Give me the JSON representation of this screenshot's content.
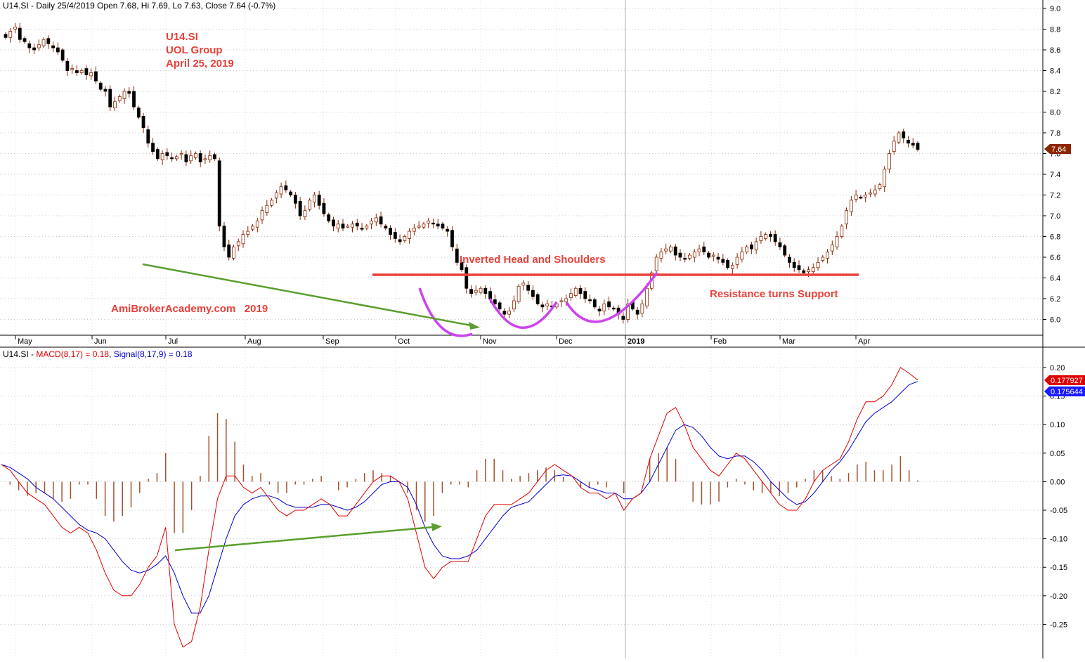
{
  "price_panel": {
    "header": "U14.SI - Daily 25/4/2019 Open 7.68, Hi 7.69, Lo 7.63, Close 7.64 (-0.7%)",
    "annotations": {
      "ticker": "U14.SI",
      "company": "UOL Group",
      "date": "April 25, 2019",
      "watermark": "AmiBrokerAcademy.com   2019",
      "pattern": "Inverted Head and Shoulders",
      "resistance": "Resistance turns Support"
    },
    "last_price_label": "7.64"
  },
  "macd_panel": {
    "header_prefix": "U14.SI - ",
    "macd_label": "MACD(8,17) = 0.18",
    "signal_label": "Signal(8,17,9) = 0.18",
    "macd_value_label": "0.177927",
    "signal_value_label": "0.175644"
  },
  "colors": {
    "up_candle": "#ffffff",
    "down_candle": "#000000",
    "wick": "#8b2500",
    "macd_line": "#e00000",
    "signal_line": "#0000cc",
    "histogram": "#a0522d",
    "annotation_text": "#e8413a",
    "resistance_line": "#e8413a",
    "trend_arrows": "#5a9e2f",
    "pattern_arcs": "#cc44ee",
    "last_price_badge": "#8b2500"
  },
  "chart_data": [
    {
      "type": "candlestick",
      "x_ticks": [
        "May",
        "Jun",
        "Jul",
        "Aug",
        "Sep",
        "Oct",
        "Nov",
        "Dec",
        "2019",
        "Feb",
        "Mar",
        "Apr"
      ],
      "y_ticks": [
        "9.0",
        "8.8",
        "8.6",
        "8.4",
        "8.2",
        "8.0",
        "7.8",
        "7.6",
        "7.4",
        "7.2",
        "7.0",
        "6.8",
        "6.6",
        "6.4",
        "6.2",
        "6.0"
      ],
      "ylim": [
        5.85,
        9.05
      ],
      "resistance_level": 6.42,
      "trend_line": [
        [
          5.2,
          6.55
        ],
        [
          6.0,
          5.92
        ]
      ],
      "close": [
        8.72,
        8.78,
        8.82,
        8.7,
        8.68,
        8.62,
        8.6,
        8.65,
        8.7,
        8.66,
        8.62,
        8.58,
        8.5,
        8.4,
        8.42,
        8.38,
        8.4,
        8.36,
        8.38,
        8.3,
        8.22,
        8.2,
        8.05,
        8.1,
        8.15,
        8.2,
        8.18,
        8.05,
        7.95,
        7.85,
        7.7,
        7.62,
        7.55,
        7.6,
        7.58,
        7.55,
        7.57,
        7.6,
        7.52,
        7.58,
        7.6,
        7.52,
        7.55,
        7.58,
        7.55,
        6.9,
        6.7,
        6.6,
        6.7,
        6.75,
        6.82,
        6.85,
        6.9,
        6.95,
        7.05,
        7.1,
        7.15,
        7.22,
        7.28,
        7.25,
        7.2,
        7.12,
        7.0,
        7.05,
        7.15,
        7.2,
        7.1,
        7.02,
        6.95,
        6.9,
        6.92,
        6.88,
        6.9,
        6.92,
        6.9,
        6.88,
        6.9,
        6.95,
        6.98,
        6.92,
        6.88,
        6.82,
        6.78,
        6.75,
        6.8,
        6.85,
        6.88,
        6.9,
        6.92,
        6.95,
        6.92,
        6.9,
        6.88,
        6.85,
        6.7,
        6.55,
        6.48,
        6.3,
        6.25,
        6.28,
        6.3,
        6.25,
        6.2,
        6.15,
        6.1,
        6.05,
        6.08,
        6.18,
        6.32,
        6.35,
        6.28,
        6.22,
        6.15,
        6.12,
        6.15,
        6.12,
        6.15,
        6.18,
        6.2,
        6.25,
        6.3,
        6.25,
        6.2,
        6.18,
        6.12,
        6.08,
        6.15,
        6.12,
        6.1,
        6.05,
        6.0,
        6.15,
        6.1,
        6.05,
        6.15,
        6.3,
        6.45,
        6.6,
        6.65,
        6.68,
        6.7,
        6.62,
        6.6,
        6.58,
        6.62,
        6.65,
        6.68,
        6.65,
        6.6,
        6.62,
        6.58,
        6.55,
        6.5,
        6.52,
        6.6,
        6.65,
        6.7,
        6.68,
        6.75,
        6.8,
        6.82,
        6.8,
        6.75,
        6.7,
        6.62,
        6.55,
        6.5,
        6.48,
        6.45,
        6.48,
        6.5,
        6.55,
        6.6,
        6.65,
        6.72,
        6.8,
        6.9,
        7.05,
        7.15,
        7.2,
        7.18,
        7.2,
        7.22,
        7.25,
        7.3,
        7.45,
        7.6,
        7.72,
        7.8,
        7.75,
        7.7,
        7.68,
        7.64
      ]
    },
    {
      "type": "line+histogram",
      "y_ticks": [
        "0.20",
        "0.15",
        "0.10",
        "0.05",
        "0.00",
        "-0.05",
        "-0.10",
        "-0.15",
        "-0.20",
        "-0.25"
      ],
      "ylim": [
        -0.3,
        0.22
      ],
      "series": [
        {
          "name": "MACD(8,17)",
          "values": [
            0.03,
            0.02,
            0.0,
            -0.02,
            -0.03,
            -0.04,
            -0.06,
            -0.08,
            -0.09,
            -0.08,
            -0.09,
            -0.12,
            -0.16,
            -0.19,
            -0.2,
            -0.2,
            -0.18,
            -0.15,
            -0.13,
            -0.08,
            -0.25,
            -0.29,
            -0.28,
            -0.22,
            -0.12,
            -0.03,
            0.01,
            0.01,
            -0.01,
            -0.02,
            -0.01,
            -0.03,
            -0.05,
            -0.06,
            -0.05,
            -0.05,
            -0.04,
            -0.03,
            -0.04,
            -0.06,
            -0.06,
            -0.04,
            -0.02,
            0.0,
            0.01,
            0.01,
            0.0,
            -0.03,
            -0.09,
            -0.15,
            -0.17,
            -0.15,
            -0.14,
            -0.14,
            -0.14,
            -0.1,
            -0.06,
            -0.04,
            -0.04,
            -0.04,
            -0.03,
            -0.02,
            0.0,
            0.02,
            0.03,
            0.02,
            0.01,
            -0.01,
            -0.02,
            -0.02,
            -0.03,
            -0.02,
            -0.05,
            -0.03,
            -0.02,
            0.04,
            0.08,
            0.12,
            0.13,
            0.1,
            0.06,
            0.04,
            0.02,
            0.01,
            0.03,
            0.05,
            0.04,
            0.02,
            0.0,
            -0.02,
            -0.04,
            -0.05,
            -0.05,
            -0.03,
            0.0,
            0.02,
            0.03,
            0.04,
            0.07,
            0.11,
            0.14,
            0.14,
            0.15,
            0.17,
            0.2,
            0.19,
            0.178
          ]
        },
        {
          "name": "Signal(8,17,9)",
          "values": [
            0.03,
            0.025,
            0.015,
            0.005,
            -0.01,
            -0.02,
            -0.03,
            -0.045,
            -0.06,
            -0.075,
            -0.085,
            -0.09,
            -0.1,
            -0.12,
            -0.14,
            -0.155,
            -0.16,
            -0.155,
            -0.145,
            -0.13,
            -0.16,
            -0.2,
            -0.23,
            -0.23,
            -0.2,
            -0.15,
            -0.1,
            -0.06,
            -0.04,
            -0.03,
            -0.025,
            -0.025,
            -0.03,
            -0.04,
            -0.045,
            -0.045,
            -0.045,
            -0.04,
            -0.04,
            -0.045,
            -0.05,
            -0.045,
            -0.035,
            -0.02,
            -0.005,
            0.0,
            0.0,
            -0.01,
            -0.04,
            -0.08,
            -0.11,
            -0.13,
            -0.135,
            -0.135,
            -0.13,
            -0.12,
            -0.1,
            -0.08,
            -0.06,
            -0.045,
            -0.04,
            -0.035,
            -0.02,
            -0.005,
            0.01,
            0.012,
            0.01,
            0.0,
            -0.01,
            -0.015,
            -0.02,
            -0.02,
            -0.03,
            -0.03,
            -0.02,
            0.0,
            0.03,
            0.06,
            0.09,
            0.1,
            0.095,
            0.08,
            0.06,
            0.045,
            0.04,
            0.045,
            0.045,
            0.035,
            0.02,
            0.0,
            -0.015,
            -0.03,
            -0.04,
            -0.035,
            -0.02,
            0.0,
            0.02,
            0.035,
            0.055,
            0.08,
            0.105,
            0.12,
            0.13,
            0.14,
            0.155,
            0.17,
            0.1756
          ]
        }
      ],
      "trend_line": [
        [
          -0.12,
          -0.081
        ]
      ]
    }
  ]
}
